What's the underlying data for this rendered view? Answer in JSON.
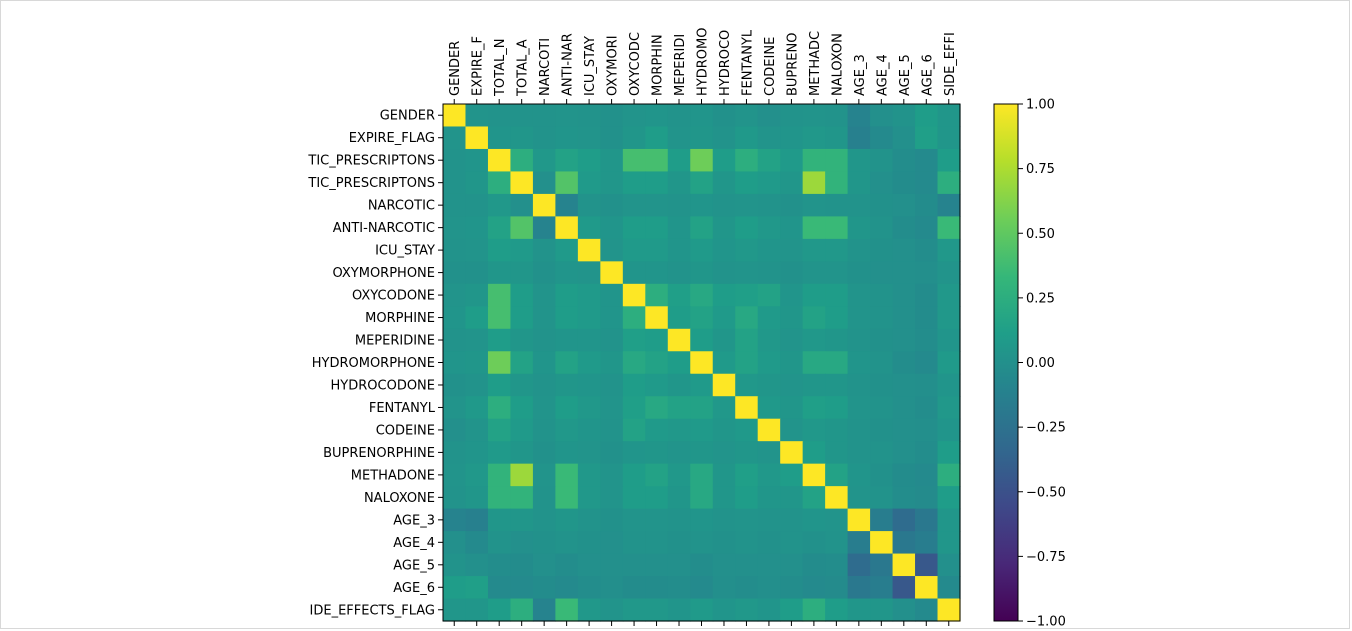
{
  "chart_data": {
    "type": "heatmap",
    "title": "",
    "x_tick_labels": [
      "GENDER",
      "EXPIRE_F",
      "TOTAL_N",
      "TOTAL_A",
      "NARCOTI",
      "ANTI-NAR",
      "ICU_STAY",
      "OXYMORI",
      "OXYCODC",
      "MORPHIN",
      "MEPERIDI",
      "HYDROMO",
      "HYDROCO",
      "FENTANYL",
      "CODEINE",
      "BUPRENO",
      "METHADC",
      "NALOXON",
      "AGE_3",
      "AGE_4",
      "AGE_5",
      "AGE_6",
      "SIDE_EFFI"
    ],
    "y_tick_labels": [
      "GENDER",
      "EXPIRE_FLAG",
      "TIC_PRESCRIPTONS",
      "TIC_PRESCRIPTONS",
      "NARCOTIC",
      "ANTI-NARCOTIC",
      "ICU_STAY",
      "OXYMORPHONE",
      "OXYCODONE",
      "MORPHINE",
      "MEPERIDINE",
      "HYDROMORPHONE",
      "HYDROCODONE",
      "FENTANYL",
      "CODEINE",
      "BUPRENORPHINE",
      "METHADONE",
      "NALOXONE",
      "AGE_3",
      "AGE_4",
      "AGE_5",
      "AGE_6",
      "IDE_EFFECTS_FLAG"
    ],
    "values": [
      [
        1.0,
        0.03,
        0.02,
        0.02,
        0.02,
        0.03,
        0.02,
        0.01,
        0.03,
        0.04,
        0.02,
        0.04,
        0.01,
        0.03,
        0.0,
        0.02,
        0.03,
        0.02,
        -0.1,
        0.0,
        0.02,
        0.1,
        0.05
      ],
      [
        0.03,
        1.0,
        0.04,
        0.05,
        0.02,
        0.04,
        0.03,
        0.01,
        0.05,
        0.1,
        0.03,
        0.05,
        0.02,
        0.07,
        0.03,
        0.04,
        0.06,
        0.05,
        -0.13,
        -0.05,
        0.0,
        0.12,
        0.05
      ],
      [
        0.02,
        0.04,
        1.0,
        0.25,
        0.06,
        0.15,
        0.1,
        0.05,
        0.4,
        0.4,
        0.1,
        0.55,
        0.1,
        0.25,
        0.15,
        0.08,
        0.3,
        0.3,
        0.05,
        0.02,
        -0.02,
        -0.05,
        0.1
      ],
      [
        0.02,
        0.05,
        0.25,
        1.0,
        0.0,
        0.45,
        0.08,
        0.05,
        0.1,
        0.1,
        0.05,
        0.15,
        0.05,
        0.1,
        0.08,
        0.05,
        0.7,
        0.3,
        0.05,
        0.0,
        -0.03,
        -0.05,
        0.25
      ],
      [
        0.02,
        0.02,
        0.06,
        0.0,
        1.0,
        -0.1,
        0.02,
        0.01,
        0.03,
        0.03,
        0.02,
        0.04,
        0.02,
        0.03,
        0.02,
        0.01,
        0.03,
        0.02,
        0.02,
        0.01,
        0.0,
        -0.03,
        -0.1
      ],
      [
        0.03,
        0.04,
        0.15,
        0.45,
        -0.1,
        1.0,
        0.08,
        0.04,
        0.1,
        0.1,
        0.04,
        0.15,
        0.05,
        0.1,
        0.06,
        0.04,
        0.35,
        0.35,
        0.05,
        0.02,
        -0.02,
        -0.05,
        0.35
      ],
      [
        0.02,
        0.03,
        0.1,
        0.08,
        0.02,
        0.08,
        1.0,
        0.03,
        0.08,
        0.08,
        0.04,
        0.08,
        0.04,
        0.06,
        0.04,
        0.03,
        0.06,
        0.06,
        0.02,
        0.01,
        0.0,
        -0.02,
        0.06
      ],
      [
        0.01,
        0.01,
        0.05,
        0.05,
        0.01,
        0.04,
        0.03,
        1.0,
        0.04,
        0.04,
        0.02,
        0.05,
        0.02,
        0.03,
        0.02,
        0.01,
        0.03,
        0.03,
        0.01,
        0.0,
        0.0,
        -0.01,
        0.03
      ],
      [
        0.03,
        0.05,
        0.4,
        0.1,
        0.03,
        0.1,
        0.08,
        0.04,
        1.0,
        0.25,
        0.12,
        0.2,
        0.1,
        0.12,
        0.15,
        0.04,
        0.1,
        0.1,
        0.03,
        0.02,
        0.0,
        -0.03,
        0.06
      ],
      [
        0.04,
        0.1,
        0.4,
        0.1,
        0.03,
        0.1,
        0.08,
        0.04,
        0.25,
        1.0,
        0.1,
        0.15,
        0.08,
        0.2,
        0.08,
        0.05,
        0.15,
        0.1,
        0.03,
        0.02,
        0.0,
        -0.03,
        0.06
      ],
      [
        0.02,
        0.03,
        0.1,
        0.05,
        0.02,
        0.04,
        0.04,
        0.02,
        0.12,
        0.1,
        1.0,
        0.1,
        0.05,
        0.15,
        0.06,
        0.03,
        0.06,
        0.05,
        0.02,
        0.01,
        0.0,
        -0.02,
        0.04
      ],
      [
        0.04,
        0.05,
        0.55,
        0.15,
        0.04,
        0.15,
        0.08,
        0.05,
        0.2,
        0.15,
        0.1,
        1.0,
        0.08,
        0.15,
        0.08,
        0.05,
        0.2,
        0.2,
        0.04,
        0.02,
        -0.02,
        -0.05,
        0.08
      ],
      [
        0.01,
        0.02,
        0.1,
        0.05,
        0.02,
        0.05,
        0.04,
        0.02,
        0.1,
        0.08,
        0.05,
        0.08,
        1.0,
        0.06,
        0.05,
        0.03,
        0.05,
        0.05,
        0.02,
        0.01,
        0.0,
        -0.01,
        0.04
      ],
      [
        0.03,
        0.07,
        0.25,
        0.1,
        0.03,
        0.1,
        0.06,
        0.03,
        0.12,
        0.2,
        0.15,
        0.15,
        0.06,
        1.0,
        0.07,
        0.05,
        0.12,
        0.1,
        0.03,
        0.02,
        0.0,
        -0.02,
        0.06
      ],
      [
        0.0,
        0.03,
        0.15,
        0.08,
        0.02,
        0.06,
        0.04,
        0.02,
        0.15,
        0.08,
        0.06,
        0.08,
        0.05,
        0.07,
        1.0,
        0.03,
        0.06,
        0.05,
        0.02,
        0.01,
        0.0,
        -0.01,
        0.04
      ],
      [
        0.02,
        0.04,
        0.08,
        0.05,
        0.01,
        0.04,
        0.03,
        0.01,
        0.04,
        0.05,
        0.03,
        0.05,
        0.03,
        0.05,
        0.03,
        1.0,
        0.1,
        0.05,
        0.02,
        0.02,
        0.0,
        -0.02,
        0.1
      ],
      [
        0.03,
        0.06,
        0.3,
        0.7,
        0.03,
        0.35,
        0.06,
        0.03,
        0.1,
        0.15,
        0.06,
        0.2,
        0.05,
        0.12,
        0.06,
        0.1,
        1.0,
        0.15,
        0.04,
        0.01,
        -0.03,
        -0.05,
        0.25
      ],
      [
        0.02,
        0.05,
        0.3,
        0.3,
        0.02,
        0.35,
        0.06,
        0.03,
        0.1,
        0.1,
        0.05,
        0.2,
        0.05,
        0.1,
        0.05,
        0.05,
        0.15,
        1.0,
        0.03,
        0.02,
        -0.02,
        -0.04,
        0.1
      ],
      [
        -0.1,
        -0.13,
        0.05,
        0.05,
        0.02,
        0.05,
        0.02,
        0.01,
        0.03,
        0.03,
        0.02,
        0.04,
        0.02,
        0.03,
        0.02,
        0.02,
        0.04,
        0.03,
        1.0,
        -0.15,
        -0.3,
        -0.2,
        0.05
      ],
      [
        0.0,
        -0.05,
        0.02,
        0.0,
        0.01,
        0.02,
        0.01,
        0.0,
        0.02,
        0.02,
        0.01,
        0.02,
        0.01,
        0.02,
        0.01,
        0.02,
        0.01,
        0.02,
        -0.15,
        1.0,
        -0.2,
        -0.15,
        0.05
      ],
      [
        0.02,
        0.0,
        -0.02,
        -0.03,
        0.0,
        -0.02,
        0.0,
        0.0,
        0.0,
        0.0,
        0.0,
        -0.02,
        0.0,
        0.0,
        0.0,
        0.0,
        -0.03,
        -0.02,
        -0.3,
        -0.2,
        1.0,
        -0.45,
        0.0
      ],
      [
        0.1,
        0.12,
        -0.05,
        -0.05,
        -0.03,
        -0.05,
        -0.02,
        -0.01,
        -0.03,
        -0.03,
        -0.02,
        -0.05,
        -0.01,
        -0.02,
        -0.01,
        -0.02,
        -0.05,
        -0.04,
        -0.2,
        -0.15,
        -0.45,
        1.0,
        -0.05
      ],
      [
        0.05,
        0.05,
        0.1,
        0.25,
        -0.1,
        0.35,
        0.06,
        0.03,
        0.06,
        0.06,
        0.04,
        0.08,
        0.04,
        0.06,
        0.04,
        0.1,
        0.25,
        0.1,
        0.05,
        0.05,
        0.0,
        -0.05,
        1.0
      ]
    ],
    "colorbar": {
      "range": [
        -1.0,
        1.0
      ],
      "tick_labels": [
        "1.00",
        "0.75",
        "0.50",
        "0.25",
        "0.00",
        "−0.25",
        "−0.50",
        "−0.75",
        "−1.00"
      ],
      "colormap": "viridis"
    },
    "colormap_stops": [
      "#440154",
      "#482878",
      "#3e4989",
      "#31688e",
      "#26828e",
      "#1f9e89",
      "#35b779",
      "#6ece58",
      "#b5de2b",
      "#fde725"
    ]
  }
}
